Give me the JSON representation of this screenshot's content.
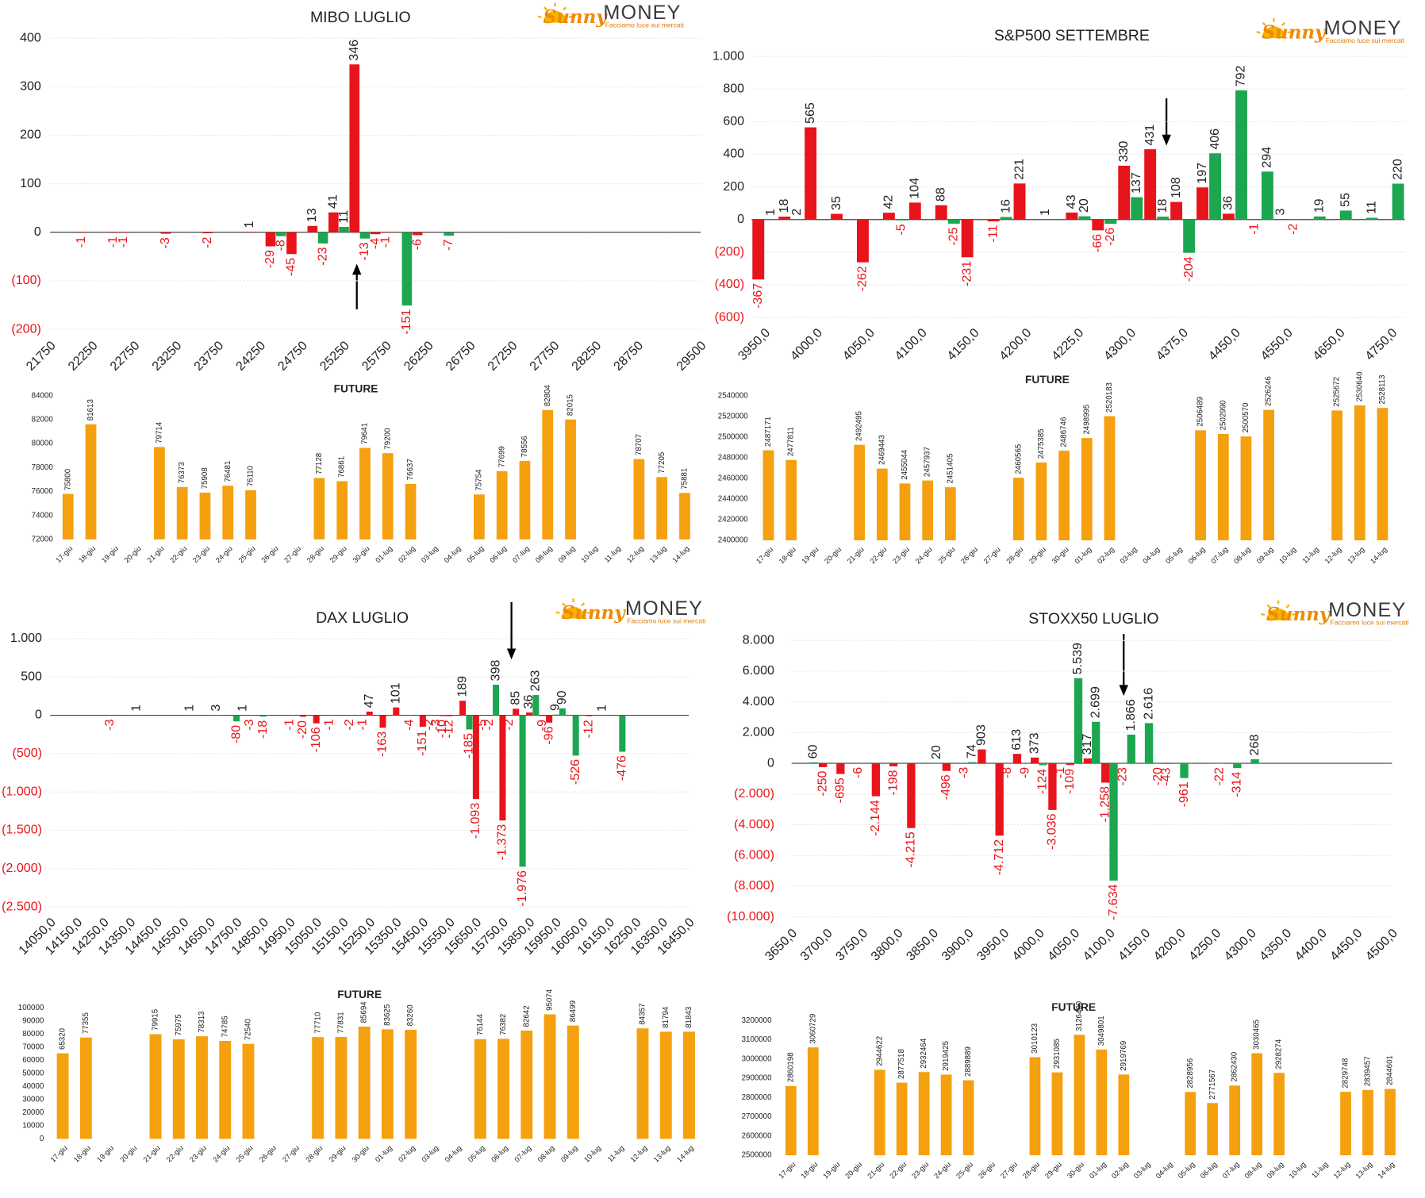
{
  "logo": {
    "brand": "Sunny",
    "name": "MONEY",
    "tagline": "Facciamo luce sui mercati"
  },
  "chart_data": [
    {
      "type": "bar",
      "title": "MIBO LUGLIO",
      "grid": true,
      "ylim": [
        -200,
        400
      ],
      "yticks": [
        {
          "value": -200,
          "label": "(200)"
        },
        {
          "value": -100,
          "label": "(100)"
        },
        0,
        100,
        200,
        300,
        400
      ],
      "xlim": [
        21750,
        29500
      ],
      "xticks": [
        21750,
        22250,
        22750,
        23250,
        23750,
        24250,
        24750,
        25250,
        25750,
        26250,
        26750,
        27250,
        27750,
        28250,
        28750,
        29500
      ],
      "series": [
        {
          "color": "#e8141b",
          "x": [
            22125,
            22500,
            22625,
            23125,
            23625,
            24125,
            24375,
            24625,
            24875,
            25125,
            25375,
            25625,
            25750,
            26125
          ],
          "values": [
            -1,
            -1,
            -1,
            -3,
            -2,
            1,
            -29,
            -45,
            13,
            41,
            346,
            -4,
            -1,
            -6
          ]
        },
        {
          "color": "#1ca650",
          "x": [
            24500,
            25000,
            25250,
            25500,
            26000,
            26500
          ],
          "values": [
            -8,
            -23,
            11,
            -13,
            -151,
            -7
          ]
        }
      ]
    },
    {
      "type": "bar",
      "title": "FUTURE",
      "color": "#f5a00f",
      "ylim": [
        72000,
        84000
      ],
      "yticks": [
        72000,
        74000,
        76000,
        78000,
        80000,
        82000,
        84000
      ],
      "categories": [
        "17-giu",
        "18-giu",
        "19-giu",
        "20-giu",
        "21-giu",
        "22-giu",
        "23-giu",
        "24-giu",
        "25-giu",
        "26-giu",
        "27-giu",
        "28-giu",
        "29-giu",
        "30-giu",
        "01-lug",
        "02-lug",
        "03-lug",
        "04-lug",
        "05-lug",
        "06-lug",
        "07-lug",
        "08-lug",
        "09-lug",
        "10-lug",
        "11-lug",
        "12-lug",
        "13-lug",
        "14-lug"
      ],
      "values": [
        75800,
        81613,
        null,
        null,
        79714,
        76373,
        75908,
        76481,
        76110,
        null,
        null,
        77128,
        76861,
        79641,
        79200,
        76637,
        null,
        null,
        75754,
        77699,
        78556,
        82804,
        82015,
        null,
        null,
        78707,
        77205,
        75881
      ]
    },
    {
      "type": "bar",
      "title": "S&P500 SETTEMBRE",
      "grid": true,
      "ylim": [
        -600,
        1000
      ],
      "yticks": [
        {
          "value": -600,
          "label": "(600)"
        },
        {
          "value": -400,
          "label": "(400)"
        },
        {
          "value": -200,
          "label": "(200)"
        },
        0,
        200,
        400,
        600,
        800,
        {
          "value": 1000,
          "label": "1.000"
        }
      ],
      "categories": [
        "3950,0",
        null,
        "4000,0",
        null,
        "4050,0",
        null,
        "4100,0",
        null,
        "4150,0",
        null,
        "4200,0",
        null,
        "4225,0",
        null,
        "4300,0",
        null,
        "4375,0",
        null,
        "4450,0",
        null,
        "4550,0",
        null,
        "4650,0",
        null,
        "4750,0"
      ],
      "series": [
        {
          "color": "#e8141b",
          "values": [
            -367,
            18,
            565,
            35,
            -262,
            42,
            104,
            88,
            -231,
            -11,
            221,
            1,
            43,
            -66,
            330,
            431,
            108,
            197,
            36,
            -1,
            3,
            null,
            null,
            null,
            null
          ]
        },
        {
          "color": "#1ca650",
          "values": [
            1,
            2,
            null,
            null,
            null,
            -5,
            null,
            -25,
            null,
            16,
            null,
            null,
            20,
            -26,
            137,
            18,
            -204,
            406,
            792,
            294,
            -2,
            19,
            55,
            11,
            220
          ]
        }
      ]
    },
    {
      "type": "bar",
      "title": "FUTURE",
      "color": "#f5a00f",
      "ylim": [
        2400000,
        2540000
      ],
      "yticks": [
        2400000,
        2420000,
        2440000,
        2460000,
        2480000,
        2500000,
        2520000,
        2540000
      ],
      "categories": [
        "17-giu",
        "18-giu",
        "19-giu",
        "20-giu",
        "21-giu",
        "22-giu",
        "23-giu",
        "24-giu",
        "25-giu",
        "26-giu",
        "27-giu",
        "28-giu",
        "29-giu",
        "30-giu",
        "01-lug",
        "02-lug",
        "03-lug",
        "04-lug",
        "05-lug",
        "06-lug",
        "07-lug",
        "08-lug",
        "09-lug",
        "10-lug",
        "11-lug",
        "12-lug",
        "13-lug",
        "14-lug"
      ],
      "values": [
        2487171,
        2477811,
        null,
        null,
        2492495,
        2469443,
        2455044,
        2457937,
        2451405,
        null,
        null,
        2460565,
        2475385,
        2486746,
        2498995,
        2520183,
        null,
        null,
        null,
        2506489,
        2502990,
        2500570,
        2526246,
        null,
        null,
        2525672,
        2530640,
        2528113
      ]
    },
    {
      "type": "bar",
      "title": "DAX LUGLIO",
      "grid": true,
      "ylim": [
        -2500,
        1000
      ],
      "yticks": [
        {
          "value": -2500,
          "label": "(2.500)"
        },
        {
          "value": -2000,
          "label": "(2.000)"
        },
        {
          "value": -1500,
          "label": "(1.500)"
        },
        {
          "value": -1000,
          "label": "(1.000)"
        },
        {
          "value": -500,
          "label": "(500)"
        },
        0,
        500,
        {
          "value": 1000,
          "label": "1.000"
        }
      ],
      "xlim": [
        14050,
        16450
      ],
      "xticks": [
        {
          "value": 14050,
          "label": "14050,0"
        },
        {
          "value": 14150,
          "label": "14150,0"
        },
        {
          "value": 14250,
          "label": "14250,0"
        },
        {
          "value": 14350,
          "label": "14350,0"
        },
        {
          "value": 14450,
          "label": "14450,0"
        },
        {
          "value": 14550,
          "label": "14550,0"
        },
        {
          "value": 14650,
          "label": "14650,0"
        },
        {
          "value": 14750,
          "label": "14750,0"
        },
        {
          "value": 14850,
          "label": "14850,0"
        },
        {
          "value": 14950,
          "label": "14950,0"
        },
        {
          "value": 15050,
          "label": "15050,0"
        },
        {
          "value": 15150,
          "label": "15150,0"
        },
        {
          "value": 15250,
          "label": "15250,0"
        },
        {
          "value": 15350,
          "label": "15350,0"
        },
        {
          "value": 15450,
          "label": "15450,0"
        },
        {
          "value": 15550,
          "label": "15550,0"
        },
        {
          "value": 15650,
          "label": "15650,0"
        },
        {
          "value": 15750,
          "label": "15750,0"
        },
        {
          "value": 15850,
          "label": "15850,0"
        },
        {
          "value": 15950,
          "label": "15950,0"
        },
        {
          "value": 16050,
          "label": "16050,0"
        },
        {
          "value": 16150,
          "label": "16150,0"
        },
        {
          "value": 16250,
          "label": "16250,0"
        },
        {
          "value": 16350,
          "label": "16350,0"
        },
        {
          "value": 16450,
          "label": "16450,0"
        }
      ],
      "series": [
        {
          "color": "#e8141b",
          "x": [
            14275,
            14800,
            14950,
            15000,
            15050,
            15100,
            15175,
            15225,
            15250,
            15300,
            15350,
            15400,
            15450,
            15475,
            15500,
            15525,
            15550,
            15600,
            15650,
            15675,
            15700,
            15750,
            15775,
            15800,
            15850,
            15900,
            15925,
            16075
          ],
          "values": [
            -3,
            -3,
            -1,
            -20,
            -106,
            -1,
            -2,
            -1,
            47,
            -163,
            101,
            -4,
            -151,
            -2,
            -3,
            -10,
            -12,
            189,
            -1093,
            -5,
            -2,
            -1373,
            -2,
            85,
            36,
            -9,
            -96,
            -12
          ],
          "value_labels": [
            "-3",
            "-3",
            "-1",
            "-20",
            "-106",
            "-1",
            "-2",
            "-1",
            "47",
            "-163",
            "101",
            "-4",
            "-151",
            "-2",
            "-3",
            "-10",
            "-12",
            "189",
            "-1.093",
            "-5",
            "-2",
            "-1.373",
            "-2",
            "85",
            "36",
            "-9",
            "-96",
            "-12"
          ]
        },
        {
          "color": "#1ca650",
          "x": [
            14375,
            14575,
            14675,
            14750,
            14775,
            14850,
            15625,
            15725,
            15825,
            15875,
            15950,
            15975,
            16025,
            16125,
            16200
          ],
          "values": [
            1,
            1,
            3,
            -80,
            1,
            -18,
            -185,
            398,
            -1976,
            263,
            9,
            90,
            -526,
            1,
            -476
          ],
          "value_labels": [
            "1",
            "1",
            "3",
            "-80",
            "1",
            "-18",
            "-185",
            "398",
            "-1.976",
            "263",
            "9",
            "90",
            "-526",
            "1",
            "-476"
          ]
        }
      ]
    },
    {
      "type": "bar",
      "title": "FUTURE",
      "color": "#f5a00f",
      "ylim": [
        0,
        100000
      ],
      "yticks": [
        0,
        10000,
        20000,
        30000,
        40000,
        50000,
        60000,
        70000,
        80000,
        90000,
        100000
      ],
      "categories": [
        "17-giu",
        "18-giu",
        "19-giu",
        "20-giu",
        "21-giu",
        "22-giu",
        "23-giu",
        "24-giu",
        "25-giu",
        "26-giu",
        "27-giu",
        "28-giu",
        "29-giu",
        "30-giu",
        "01-lug",
        "02-lug",
        "03-lug",
        "04-lug",
        "05-lug",
        "06-lug",
        "07-lug",
        "08-lug",
        "09-lug",
        "10-lug",
        "11-lug",
        "12-lug",
        "13-lug",
        "14-lug"
      ],
      "values": [
        65320,
        77355,
        null,
        null,
        79915,
        75975,
        78313,
        74785,
        72540,
        null,
        null,
        77710,
        77831,
        85694,
        83625,
        83260,
        null,
        null,
        76144,
        76382,
        82642,
        95074,
        86499,
        null,
        null,
        84357,
        81794,
        81843
      ]
    },
    {
      "type": "bar",
      "title": "STOXX50 LUGLIO",
      "grid": true,
      "ylim": [
        -10000,
        8000
      ],
      "yticks": [
        {
          "value": -10000,
          "label": "(10.000)"
        },
        {
          "value": -8000,
          "label": "(8.000)"
        },
        {
          "value": -6000,
          "label": "(6.000)"
        },
        {
          "value": -4000,
          "label": "(4.000)"
        },
        {
          "value": -2000,
          "label": "(2.000)"
        },
        0,
        {
          "value": 2000,
          "label": "2.000"
        },
        {
          "value": 4000,
          "label": "4.000"
        },
        {
          "value": 6000,
          "label": "6.000"
        },
        {
          "value": 8000,
          "label": "8.000"
        }
      ],
      "xlim": [
        3650,
        4500
      ],
      "xticks": [
        {
          "value": 3650,
          "label": "3650,0"
        },
        {
          "value": 3700,
          "label": "3700,0"
        },
        {
          "value": 3750,
          "label": "3750,0"
        },
        {
          "value": 3800,
          "label": "3800,0"
        },
        {
          "value": 3850,
          "label": "3850,0"
        },
        {
          "value": 3900,
          "label": "3900,0"
        },
        {
          "value": 3950,
          "label": "3950,0"
        },
        {
          "value": 4000,
          "label": "4000,0"
        },
        {
          "value": 4050,
          "label": "4050,0"
        },
        {
          "value": 4100,
          "label": "4100,0"
        },
        {
          "value": 4150,
          "label": "4150,0"
        },
        {
          "value": 4200,
          "label": "4200,0"
        },
        {
          "value": 4250,
          "label": "4250,0"
        },
        {
          "value": 4300,
          "label": "4300,0"
        },
        {
          "value": 4350,
          "label": "4350,0"
        },
        {
          "value": 4400,
          "label": "4400,0"
        },
        {
          "value": 4450,
          "label": "4450,0"
        },
        {
          "value": 4500,
          "label": "4500,0"
        }
      ],
      "series": [
        {
          "color": "#e8141b",
          "x": [
            3700,
            3725,
            3750,
            3775,
            3800,
            3825,
            3875,
            3900,
            3925,
            3950,
            3975,
            4000,
            4025,
            4050,
            4075,
            4100,
            4125,
            4175
          ],
          "values": [
            -250,
            -695,
            -6,
            -2144,
            -198,
            -4215,
            -496,
            -3,
            903,
            -4712,
            613,
            373,
            -3036,
            -109,
            317,
            -1258,
            -23,
            -20
          ],
          "value_labels": [
            "-250",
            "-695",
            "-6",
            "-2.144",
            "-198",
            "-4.215",
            "-496",
            "-3",
            "903",
            "-4.712",
            "613",
            "373",
            "-3.036",
            "-109",
            "317",
            "-1.258",
            "-23",
            "-20"
          ]
        },
        {
          "color": "#1ca650",
          "x": [
            3675,
            3850,
            3900,
            3950,
            3975,
            4000,
            4025,
            4050,
            4075,
            4100,
            4125,
            4150,
            4175,
            4200,
            4250,
            4275,
            4300
          ],
          "values": [
            60,
            20,
            74,
            -8,
            -9,
            -124,
            -1,
            5539,
            2699,
            -7634,
            1866,
            2616,
            -43,
            -961,
            -22,
            -314,
            268
          ],
          "value_labels": [
            "60",
            "20",
            "74",
            "-8",
            "-9",
            "-124",
            "-1",
            "5.539",
            "2.699",
            "-7.634",
            "1.866",
            "2.616",
            "-43",
            "-961",
            "-22",
            "-314",
            "268"
          ]
        }
      ]
    },
    {
      "type": "bar",
      "title": "FUTURE",
      "color": "#f5a00f",
      "ylim": [
        2500000,
        3200000
      ],
      "yticks": [
        2500000,
        2600000,
        2700000,
        2800000,
        2900000,
        3000000,
        3100000,
        3200000
      ],
      "categories": [
        "17-giu",
        "18-giu",
        "19-giu",
        "20-giu",
        "21-giu",
        "22-giu",
        "23-giu",
        "24-giu",
        "25-giu",
        "26-giu",
        "27-giu",
        "28-giu",
        "29-giu",
        "30-giu",
        "01-lug",
        "02-lug",
        "03-lug",
        "04-lug",
        "05-lug",
        "06-lug",
        "07-lug",
        "08-lug",
        "09-lug",
        "10-lug",
        "11-lug",
        "12-lug",
        "13-lug",
        "14-lug"
      ],
      "values": [
        2860198,
        3060729,
        null,
        null,
        2944622,
        2877518,
        2932464,
        2919425,
        2889889,
        null,
        null,
        3010123,
        2931085,
        3126400,
        3049801,
        2919769,
        null,
        null,
        2828956,
        2771567,
        2862430,
        3030465,
        2928274,
        null,
        null,
        2829748,
        2839457,
        2844601
      ]
    }
  ]
}
